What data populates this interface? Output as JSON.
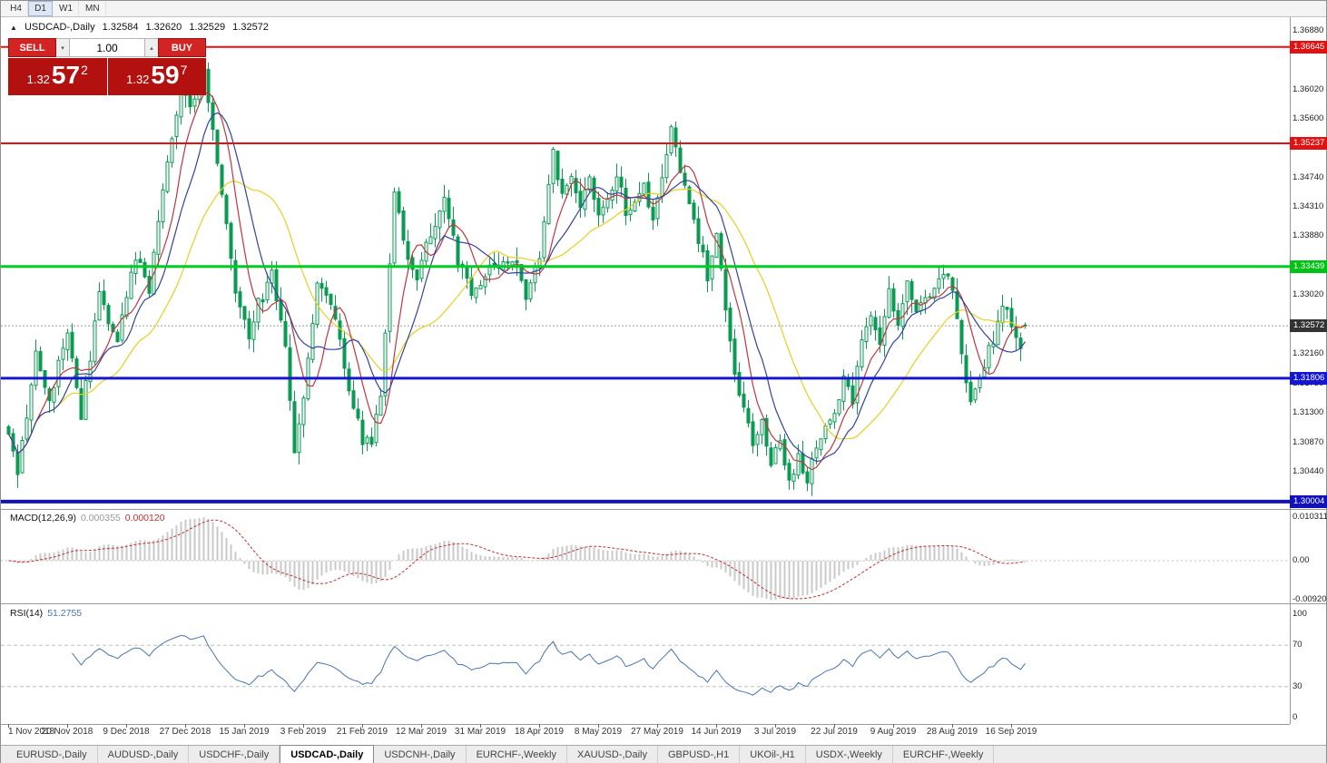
{
  "window": {
    "timeframes": [
      "H4",
      "D1",
      "W1",
      "MN"
    ],
    "active_timeframe": "D1"
  },
  "chart": {
    "header": {
      "collapse_arrow": "▲",
      "title": "USDCAD-,Daily",
      "open": "1.32584",
      "high": "1.32620",
      "low": "1.32529",
      "close": "1.32572"
    },
    "trade_panel": {
      "sell_label": "SELL",
      "buy_label": "BUY",
      "volume": "1.00",
      "volume_down_icon": "▾",
      "volume_up_icon": "▴",
      "bid": {
        "prefix": "1.32",
        "big": "57",
        "sup": "2"
      },
      "ask": {
        "prefix": "1.32",
        "big": "59",
        "sup": "7"
      }
    },
    "axis": {
      "labels": [
        {
          "text": "1.36880",
          "price": 1.3688
        },
        {
          "text": "1.36020",
          "price": 1.3602
        },
        {
          "text": "1.35600",
          "price": 1.356
        },
        {
          "text": "1.35170",
          "price": 1.3517
        },
        {
          "text": "1.34740",
          "price": 1.3474
        },
        {
          "text": "1.34310",
          "price": 1.3431
        },
        {
          "text": "1.33880",
          "price": 1.3388
        },
        {
          "text": "1.33020",
          "price": 1.3302
        },
        {
          "text": "1.32160",
          "price": 1.3216
        },
        {
          "text": "1.31730",
          "price": 1.3173
        },
        {
          "text": "1.31300",
          "price": 1.313
        },
        {
          "text": "1.30870",
          "price": 1.3087
        },
        {
          "text": "1.30440",
          "price": 1.3044
        }
      ],
      "badges": [
        {
          "text": "1.36645",
          "price": 1.36645,
          "color": "#e01212"
        },
        {
          "text": "1.35237",
          "price": 1.35237,
          "color": "#e01212"
        },
        {
          "text": "1.33439",
          "price": 1.33439,
          "color": "#00c214"
        },
        {
          "text": "1.31806",
          "price": 1.31806,
          "color": "#1616d0"
        },
        {
          "text": "1.30004",
          "price": 1.30004,
          "color": "#1111bb"
        }
      ],
      "current": {
        "text": "1.32572",
        "price": 1.32572,
        "color": "#333333"
      }
    }
  },
  "macd_panel": {
    "name": "MACD(12,26,9)",
    "value_main": "0.000355",
    "value_signal": "0.000120",
    "axis": [
      {
        "text": "0.010311",
        "v": 0.010311
      },
      {
        "text": "0.00",
        "v": 0
      },
      {
        "text": "-0.009203",
        "v": -0.009203
      }
    ]
  },
  "rsi_panel": {
    "name": "RSI(14)",
    "value": "51.2755",
    "axis": [
      {
        "text": "100",
        "v": 100
      },
      {
        "text": "70",
        "v": 70
      },
      {
        "text": "30",
        "v": 30
      },
      {
        "text": "0",
        "v": 0
      }
    ],
    "levels": [
      70,
      30
    ]
  },
  "tabs": [
    {
      "label": "EURUSD-,Daily",
      "active": false
    },
    {
      "label": "AUDUSD-,Daily",
      "active": false
    },
    {
      "label": "USDCHF-,Daily",
      "active": false
    },
    {
      "label": "USDCAD-,Daily",
      "active": true
    },
    {
      "label": "USDCNH-,Daily",
      "active": false
    },
    {
      "label": "EURCHF-,Weekly",
      "active": false
    },
    {
      "label": "XAUUSD-,Daily",
      "active": false
    },
    {
      "label": "GBPUSD-,H1",
      "active": false
    },
    {
      "label": "UKOil-,H1",
      "active": false
    },
    {
      "label": "USDX-,Weekly",
      "active": false
    },
    {
      "label": "EURCHF-,Weekly",
      "active": false
    }
  ],
  "chart_data": {
    "type": "candlestick",
    "symbol": "USDCAD",
    "timeframe": "Daily",
    "last_candle": {
      "open": 1.32584,
      "high": 1.3262,
      "low": 1.32529,
      "close": 1.32572
    },
    "bid": 1.32572,
    "ask": 1.32597,
    "y_range": [
      1.2992,
      1.3703
    ],
    "candle_up_color": "#0a9a52",
    "candle_down_color": "#0a9a52",
    "x_labels": [
      {
        "text": "1 Nov 2018",
        "i": 0
      },
      {
        "text": "20 Nov 2018",
        "i": 13
      },
      {
        "text": "9 Dec 2018",
        "i": 26
      },
      {
        "text": "27 Dec 2018",
        "i": 39
      },
      {
        "text": "15 Jan 2019",
        "i": 52
      },
      {
        "text": "3 Feb 2019",
        "i": 65
      },
      {
        "text": "21 Feb 2019",
        "i": 78
      },
      {
        "text": "12 Mar 2019",
        "i": 91
      },
      {
        "text": "31 Mar 2019",
        "i": 104
      },
      {
        "text": "18 Apr 2019",
        "i": 117
      },
      {
        "text": "8 May 2019",
        "i": 130
      },
      {
        "text": "27 May 2019",
        "i": 143
      },
      {
        "text": "14 Jun 2019",
        "i": 156
      },
      {
        "text": "3 Jul 2019",
        "i": 169
      },
      {
        "text": "22 Jul 2019",
        "i": 182
      },
      {
        "text": "9 Aug 2019",
        "i": 195
      },
      {
        "text": "28 Aug 2019",
        "i": 208
      },
      {
        "text": "16 Sep 2019",
        "i": 221
      }
    ],
    "price_path_anchors": [
      [
        0,
        1.309
      ],
      [
        2,
        1.3042
      ],
      [
        6,
        1.3215
      ],
      [
        9,
        1.315
      ],
      [
        13,
        1.3252
      ],
      [
        16,
        1.3128
      ],
      [
        20,
        1.33
      ],
      [
        24,
        1.3238
      ],
      [
        28,
        1.3355
      ],
      [
        31,
        1.331
      ],
      [
        34,
        1.346
      ],
      [
        36,
        1.354
      ],
      [
        38,
        1.36
      ],
      [
        40,
        1.358
      ],
      [
        43,
        1.3628
      ],
      [
        45,
        1.355
      ],
      [
        47,
        1.345
      ],
      [
        50,
        1.3302
      ],
      [
        53,
        1.3242
      ],
      [
        55,
        1.3288
      ],
      [
        58,
        1.333
      ],
      [
        61,
        1.3232
      ],
      [
        63,
        1.3062
      ],
      [
        65,
        1.3148
      ],
      [
        68,
        1.3318
      ],
      [
        72,
        1.3268
      ],
      [
        75,
        1.3162
      ],
      [
        78,
        1.3092
      ],
      [
        80,
        1.3082
      ],
      [
        82,
        1.3158
      ],
      [
        85,
        1.3448
      ],
      [
        88,
        1.336
      ],
      [
        90,
        1.3332
      ],
      [
        93,
        1.3388
      ],
      [
        96,
        1.344
      ],
      [
        99,
        1.3352
      ],
      [
        102,
        1.331
      ],
      [
        105,
        1.3332
      ],
      [
        108,
        1.335
      ],
      [
        111,
        1.3358
      ],
      [
        114,
        1.3302
      ],
      [
        117,
        1.336
      ],
      [
        120,
        1.3518
      ],
      [
        122,
        1.3442
      ],
      [
        124,
        1.3468
      ],
      [
        126,
        1.3422
      ],
      [
        128,
        1.3478
      ],
      [
        130,
        1.3422
      ],
      [
        132,
        1.345
      ],
      [
        134,
        1.3478
      ],
      [
        136,
        1.3422
      ],
      [
        138,
        1.344
      ],
      [
        140,
        1.3458
      ],
      [
        142,
        1.3402
      ],
      [
        144,
        1.3468
      ],
      [
        146,
        1.3548
      ],
      [
        148,
        1.3478
      ],
      [
        150,
        1.3432
      ],
      [
        152,
        1.3382
      ],
      [
        154,
        1.3332
      ],
      [
        156,
        1.3388
      ],
      [
        158,
        1.3282
      ],
      [
        160,
        1.3182
      ],
      [
        162,
        1.3132
      ],
      [
        164,
        1.3092
      ],
      [
        166,
        1.3112
      ],
      [
        168,
        1.3062
      ],
      [
        170,
        1.3082
      ],
      [
        172,
        1.3032
      ],
      [
        174,
        1.3062
      ],
      [
        176,
        1.3026
      ],
      [
        178,
        1.3082
      ],
      [
        181,
        1.3112
      ],
      [
        184,
        1.3178
      ],
      [
        186,
        1.3142
      ],
      [
        188,
        1.3238
      ],
      [
        190,
        1.3278
      ],
      [
        192,
        1.3232
      ],
      [
        194,
        1.3308
      ],
      [
        196,
        1.3262
      ],
      [
        198,
        1.3318
      ],
      [
        200,
        1.3272
      ],
      [
        202,
        1.3294
      ],
      [
        204,
        1.3308
      ],
      [
        206,
        1.3338
      ],
      [
        208,
        1.3308
      ],
      [
        210,
        1.3218
      ],
      [
        212,
        1.3142
      ],
      [
        214,
        1.3188
      ],
      [
        217,
        1.3238
      ],
      [
        219,
        1.3288
      ],
      [
        221,
        1.3262
      ],
      [
        223,
        1.3232
      ],
      [
        224,
        1.32572
      ]
    ],
    "levels": [
      {
        "price": 1.36645,
        "color": "#e01212",
        "width": 2
      },
      {
        "price": 1.35237,
        "color": "#e01212",
        "width": 2
      },
      {
        "price": 1.33439,
        "color": "#00cc22",
        "width": 3
      },
      {
        "price": 1.31806,
        "color": "#1616d0",
        "width": 3
      },
      {
        "price": 1.30004,
        "color": "#1111bb",
        "width": 4
      }
    ],
    "moving_averages": [
      {
        "period": 24,
        "color": "#e8cf20"
      },
      {
        "period": 7,
        "color": "#c23440"
      },
      {
        "period": 12,
        "color": "#33429e"
      }
    ],
    "indicators": [
      {
        "name": "MACD",
        "params": [
          12,
          26,
          9
        ],
        "main": 0.000355,
        "signal": 0.00012
      },
      {
        "name": "RSI",
        "params": [
          14
        ],
        "value": 51.2755
      }
    ]
  }
}
